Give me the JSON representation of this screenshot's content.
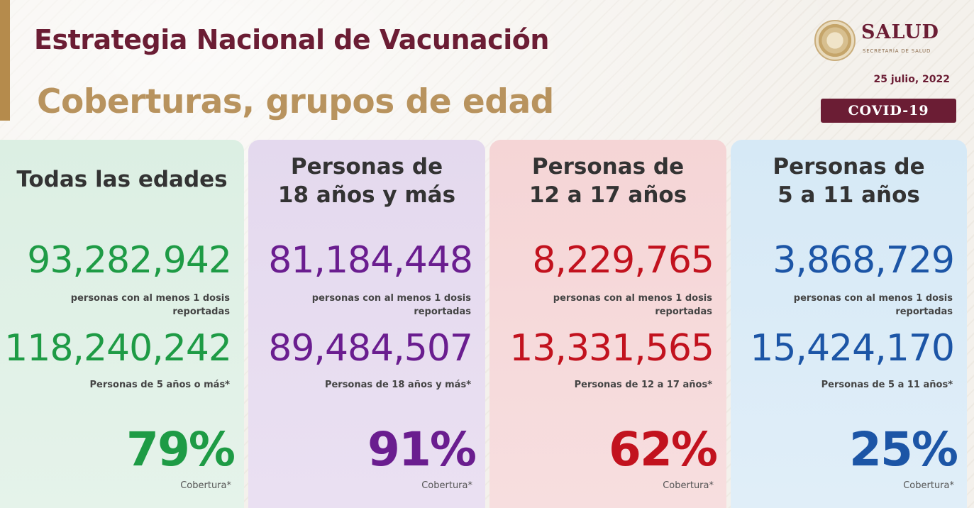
{
  "header": {
    "title": "Estrategia Nacional de Vacunación",
    "subtitle": "Coberturas, grupos de edad",
    "logo_text": "SALUD",
    "logo_subtext": "SECRETARÍA DE SALUD",
    "date": "25 julio, 2022",
    "badge": "COVID-19"
  },
  "colors": {
    "title": "#6b1d34",
    "subtitle": "#b8935e",
    "green": "#1e9b45",
    "purple": "#6a1d8f",
    "red": "#c2121e",
    "blue": "#1c55a6"
  },
  "panels": [
    {
      "heading": "Todas las edades",
      "vaccinated": "93,282,942",
      "vaccinated_label": "personas con al menos 1 dosis reportadas",
      "population": "118,240,242",
      "population_label": "Personas de 5 años o más*",
      "coverage": "79%",
      "coverage_label": "Cobertura*"
    },
    {
      "heading_line1": "Personas de",
      "heading_line2": "18 años y más",
      "vaccinated": "81,184,448",
      "vaccinated_label": "personas con al menos 1 dosis reportadas",
      "population": "89,484,507",
      "population_label": "Personas de 18 años y más*",
      "coverage": "91%",
      "coverage_label": "Cobertura*"
    },
    {
      "heading_line1": "Personas de",
      "heading_line2": "12 a 17 años",
      "vaccinated": "8,229,765",
      "vaccinated_label": "personas con al menos 1 dosis reportadas",
      "population": "13,331,565",
      "population_label": "Personas de 12 a 17 años*",
      "coverage": "62%",
      "coverage_label": "Cobertura*"
    },
    {
      "heading_line1": "Personas de",
      "heading_line2": "5 a 11 años",
      "vaccinated": "3,868,729",
      "vaccinated_label": "personas con al menos 1 dosis reportadas",
      "population": "15,424,170",
      "population_label": "Personas de 5 a 11 años*",
      "coverage": "25%",
      "coverage_label": "Cobertura*"
    }
  ]
}
